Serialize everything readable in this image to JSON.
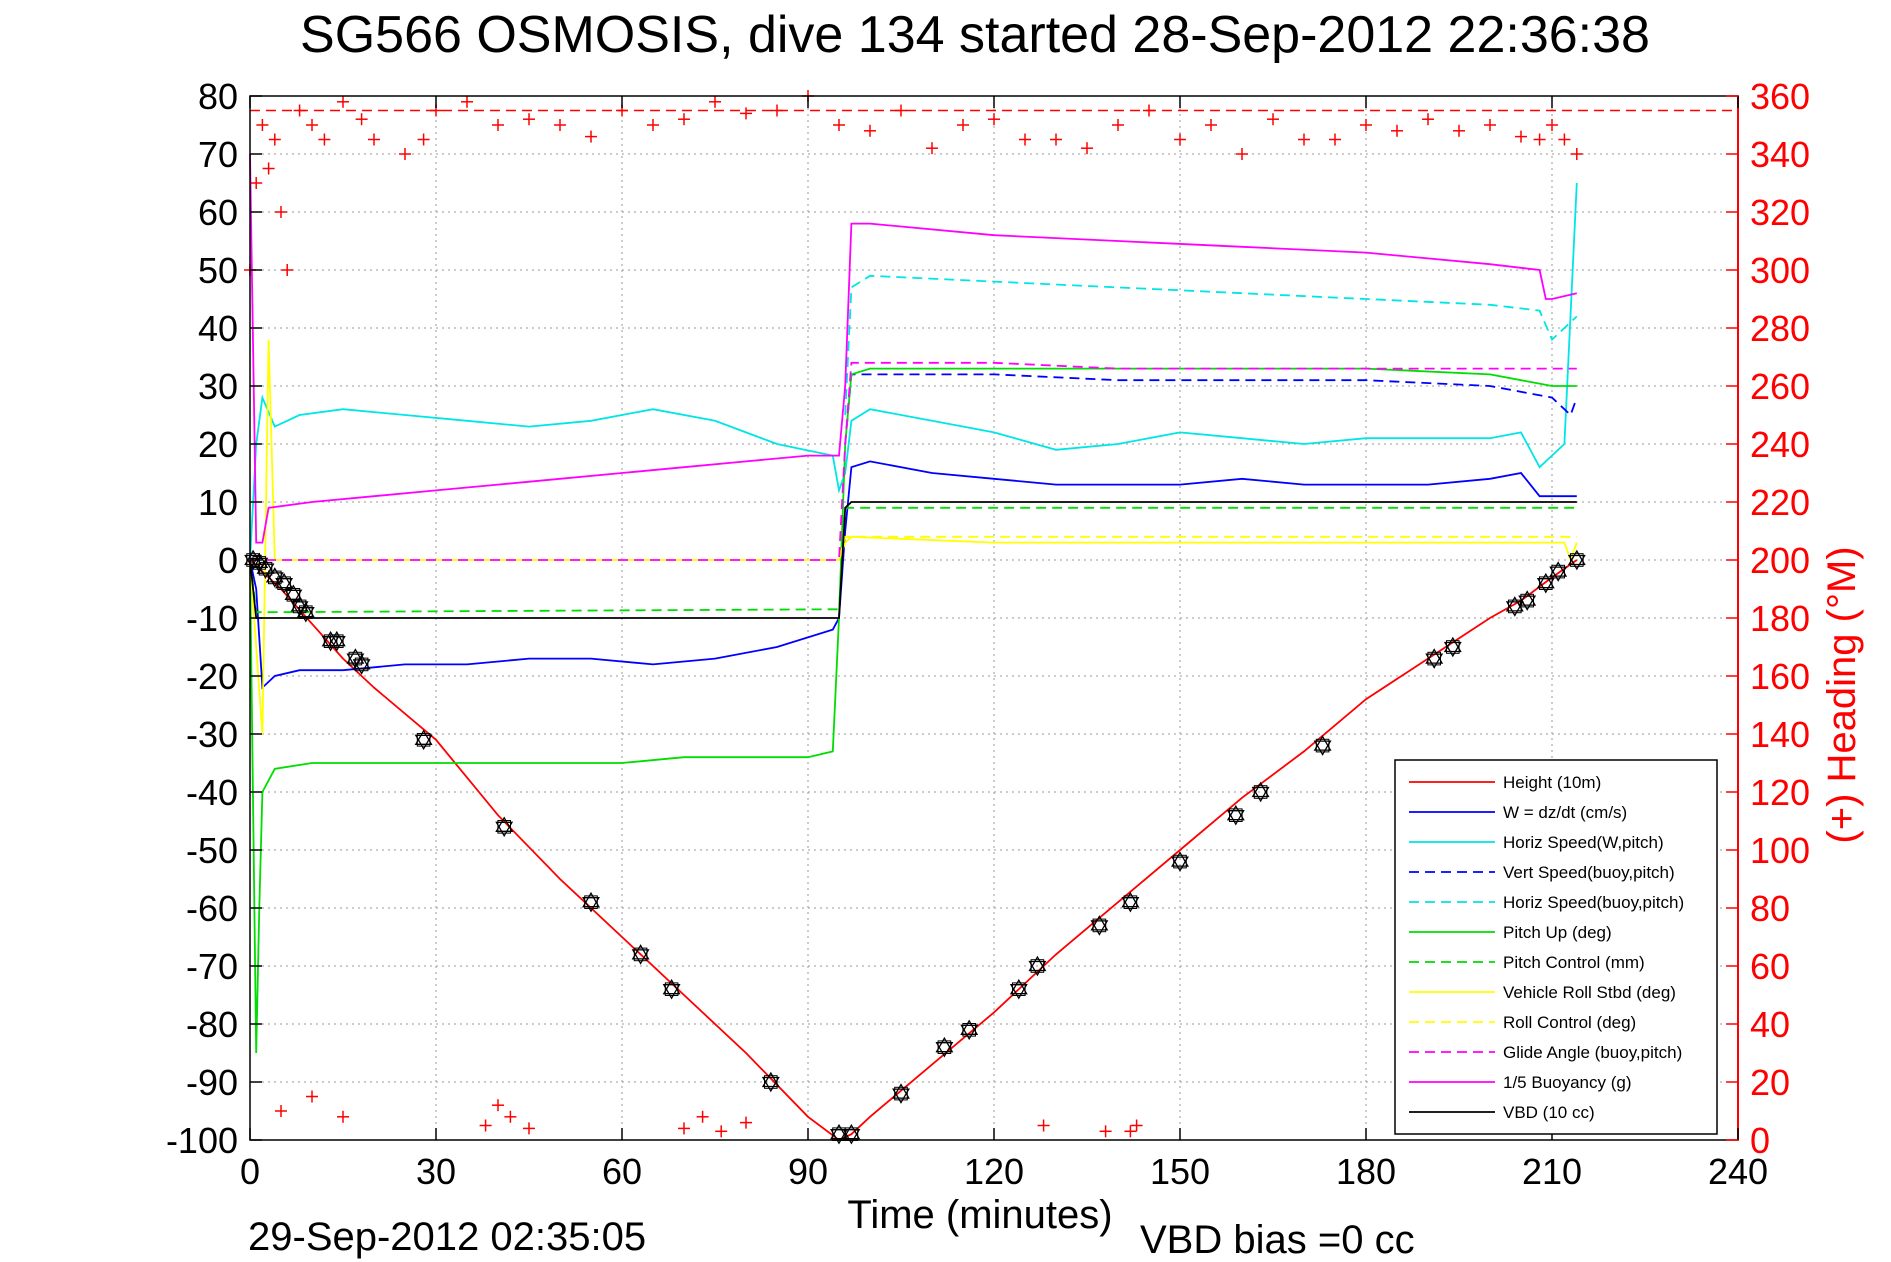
{
  "chart_data": {
    "type": "line",
    "title": "SG566 OSMOSIS, dive 134 started 28-Sep-2012 22:36:38",
    "xlabel": "Time (minutes)",
    "ylabel_right": "(+) Heading (°M)",
    "footer_left": "29-Sep-2012 02:35:05",
    "footer_right": "VBD bias =0 cc",
    "xlim": [
      0,
      240
    ],
    "ylim": [
      -100,
      80
    ],
    "ylim_right": [
      0,
      360
    ],
    "xticks": [
      0,
      30,
      60,
      90,
      120,
      150,
      180,
      210,
      240
    ],
    "yticks": [
      -100,
      -90,
      -80,
      -70,
      -60,
      -50,
      -40,
      -30,
      -20,
      -10,
      0,
      10,
      20,
      30,
      40,
      50,
      60,
      70,
      80
    ],
    "yticks_right": [
      0,
      20,
      40,
      60,
      80,
      100,
      120,
      140,
      160,
      180,
      200,
      220,
      240,
      260,
      280,
      300,
      320,
      340,
      360
    ],
    "grid": true,
    "legend_position": "lower-right",
    "series": [
      {
        "name": "Height (10m)",
        "color": "#ff0000",
        "style": "solid",
        "x": [
          0,
          5,
          10,
          15,
          20,
          30,
          40,
          50,
          60,
          70,
          80,
          90,
          95,
          97,
          100,
          110,
          120,
          130,
          140,
          150,
          160,
          170,
          180,
          190,
          200,
          205,
          210,
          214
        ],
        "y": [
          0,
          -5,
          -11,
          -17,
          -22,
          -31,
          -44,
          -55,
          -65,
          -75,
          -85,
          -96,
          -100,
          -99,
          -96,
          -87,
          -78,
          -68,
          -59,
          -50,
          -41,
          -33,
          -24,
          -17,
          -10,
          -7,
          -3,
          0
        ]
      },
      {
        "name": "W = dz/dt (cm/s)",
        "color": "#0000ff",
        "style": "solid",
        "x": [
          0,
          1,
          2,
          4,
          8,
          15,
          25,
          35,
          45,
          55,
          65,
          75,
          85,
          94,
          95,
          96,
          97,
          100,
          110,
          120,
          130,
          140,
          150,
          160,
          170,
          180,
          190,
          200,
          205,
          208,
          212,
          214
        ],
        "y": [
          0,
          -5,
          -22,
          -20,
          -19,
          -19,
          -18,
          -18,
          -17,
          -17,
          -18,
          -17,
          -15,
          -12,
          -10,
          5,
          16,
          17,
          15,
          14,
          13,
          13,
          13,
          14,
          13,
          13,
          13,
          14,
          15,
          11,
          11,
          11
        ]
      },
      {
        "name": "Horiz Speed(W,pitch)",
        "color": "#00e5e5",
        "style": "solid",
        "x": [
          0,
          1,
          2,
          4,
          8,
          15,
          25,
          35,
          45,
          55,
          65,
          75,
          85,
          94,
          95,
          96,
          97,
          100,
          110,
          120,
          130,
          140,
          150,
          160,
          170,
          180,
          190,
          200,
          205,
          208,
          212,
          214
        ],
        "y": [
          0,
          20,
          28,
          23,
          25,
          26,
          25,
          24,
          23,
          24,
          26,
          24,
          20,
          18,
          12,
          15,
          24,
          26,
          24,
          22,
          19,
          20,
          22,
          21,
          20,
          21,
          21,
          21,
          22,
          16,
          20,
          65
        ]
      },
      {
        "name": "Vert Speed(buoy,pitch)",
        "color": "#0000ff",
        "style": "dashed",
        "x": [
          96,
          97,
          100,
          110,
          120,
          140,
          160,
          180,
          200,
          210,
          213,
          214
        ],
        "y": [
          20,
          32,
          32,
          32,
          32,
          31,
          31,
          31,
          30,
          28,
          25,
          28
        ]
      },
      {
        "name": "Horiz Speed(buoy,pitch)",
        "color": "#00e5e5",
        "style": "dashed",
        "x": [
          96,
          97,
          100,
          120,
          140,
          160,
          180,
          200,
          208,
          210,
          214
        ],
        "y": [
          25,
          47,
          49,
          48,
          47,
          46,
          45,
          44,
          43,
          38,
          42
        ]
      },
      {
        "name": "Pitch Up (deg)",
        "color": "#00dd00",
        "style": "solid",
        "x": [
          0,
          1,
          1.5,
          2,
          4,
          10,
          20,
          30,
          40,
          50,
          60,
          70,
          80,
          90,
          94,
          95,
          96,
          97,
          100,
          120,
          140,
          160,
          180,
          200,
          210,
          214
        ],
        "y": [
          0,
          -85,
          -60,
          -40,
          -36,
          -35,
          -35,
          -35,
          -35,
          -35,
          -35,
          -34,
          -34,
          -34,
          -33,
          -10,
          20,
          32,
          33,
          33,
          33,
          33,
          33,
          32,
          30,
          30
        ]
      },
      {
        "name": "Pitch Control (mm)",
        "color": "#00dd00",
        "style": "dashed",
        "x": [
          0,
          1,
          2,
          94,
          95,
          96,
          97,
          214
        ],
        "y": [
          0,
          -9,
          -9,
          -8.5,
          -8.5,
          9,
          9,
          9
        ]
      },
      {
        "name": "Vehicle Roll Stbd (deg)",
        "color": "#ffff00",
        "style": "solid",
        "x": [
          0,
          2,
          3,
          4,
          10,
          20,
          40,
          60,
          80,
          94,
          95,
          96,
          97,
          120,
          140,
          160,
          180,
          200,
          212,
          213,
          214
        ],
        "y": [
          0,
          -30,
          38,
          0,
          0,
          0,
          0,
          0,
          0,
          0,
          0,
          3,
          4,
          3,
          3,
          3,
          3,
          3,
          3,
          0,
          3
        ]
      },
      {
        "name": "Roll Control (deg)",
        "color": "#ffff00",
        "style": "dashed",
        "x": [
          0,
          94,
          95,
          96,
          97,
          214
        ],
        "y": [
          0,
          0,
          0,
          4,
          4,
          4
        ]
      },
      {
        "name": "Glide Angle (buoy,pitch)",
        "color": "#ff00ff",
        "style": "dashed",
        "x": [
          0,
          95,
          96,
          97,
          100,
          120,
          140,
          160,
          180,
          200,
          210,
          214
        ],
        "y": [
          0,
          0,
          20,
          34,
          34,
          34,
          33,
          33,
          33,
          33,
          33,
          33
        ]
      },
      {
        "name": "1/5 Buoyancy (g)",
        "color": "#ff00ff",
        "style": "solid",
        "x": [
          0,
          1,
          2,
          3,
          10,
          20,
          30,
          40,
          50,
          60,
          70,
          80,
          90,
          95,
          96,
          97,
          100,
          120,
          140,
          160,
          180,
          200,
          208,
          209,
          210,
          214
        ],
        "y": [
          70,
          3,
          3,
          9,
          10,
          11,
          12,
          13,
          14,
          15,
          16,
          17,
          18,
          18,
          30,
          58,
          58,
          56,
          55,
          54,
          53,
          51,
          50,
          45,
          45,
          46
        ]
      },
      {
        "name": "VBD (10 cc)",
        "color": "#000000",
        "style": "solid",
        "x": [
          0,
          1,
          2,
          94,
          95,
          96,
          97,
          214
        ],
        "y": [
          0,
          -10,
          -10,
          -10,
          -10,
          9,
          10,
          10
        ]
      }
    ],
    "heading_series": {
      "name": "Heading",
      "color": "#ff0000",
      "marker": "+",
      "axis": "right",
      "target_heading": 355,
      "x": [
        0,
        1,
        2,
        3,
        4,
        5,
        6,
        8,
        10,
        12,
        15,
        18,
        20,
        25,
        28,
        30,
        35,
        40,
        45,
        50,
        55,
        60,
        65,
        70,
        75,
        80,
        85,
        90,
        95,
        100,
        105,
        110,
        115,
        120,
        125,
        130,
        135,
        140,
        145,
        150,
        155,
        160,
        165,
        170,
        175,
        180,
        185,
        190,
        195,
        200,
        205,
        208,
        210,
        212,
        214
      ],
      "y": [
        300,
        330,
        350,
        335,
        345,
        320,
        300,
        355,
        350,
        345,
        358,
        352,
        345,
        340,
        345,
        355,
        358,
        350,
        352,
        350,
        346,
        355,
        350,
        352,
        358,
        354,
        355,
        360,
        350,
        348,
        355,
        342,
        350,
        352,
        345,
        345,
        342,
        350,
        355,
        345,
        350,
        340,
        352,
        345,
        345,
        350,
        348,
        352,
        348,
        350,
        346,
        345,
        350,
        345,
        340
      ]
    },
    "heading_low_x": [
      5,
      10,
      15,
      38,
      40,
      42,
      45,
      70,
      73,
      76,
      80,
      128,
      138,
      142,
      143
    ],
    "heading_low_y": [
      10,
      15,
      8,
      5,
      12,
      8,
      4,
      4,
      8,
      3,
      6,
      5,
      3,
      3,
      5
    ],
    "markers": {
      "name": "dive markers",
      "color": "#000000",
      "x": [
        0.5,
        1.5,
        2.5,
        4,
        5.5,
        7,
        8,
        9,
        13,
        14,
        17,
        18,
        28,
        41,
        55,
        63,
        68,
        84,
        95,
        97,
        105,
        112,
        116,
        124,
        127,
        137,
        142,
        150,
        159,
        163,
        173,
        191,
        194,
        204,
        206,
        209,
        211,
        214
      ],
      "y": [
        0,
        -0.5,
        -1.5,
        -3,
        -4,
        -6,
        -8,
        -9,
        -14,
        -14,
        -17,
        -18,
        -31,
        -46,
        -59,
        -68,
        -74,
        -90,
        -99,
        -99,
        -92,
        -84,
        -81,
        -74,
        -70,
        -63,
        -59,
        -52,
        -44,
        -40,
        -32,
        -17,
        -15,
        -8,
        -7,
        -4,
        -2,
        0
      ]
    }
  }
}
